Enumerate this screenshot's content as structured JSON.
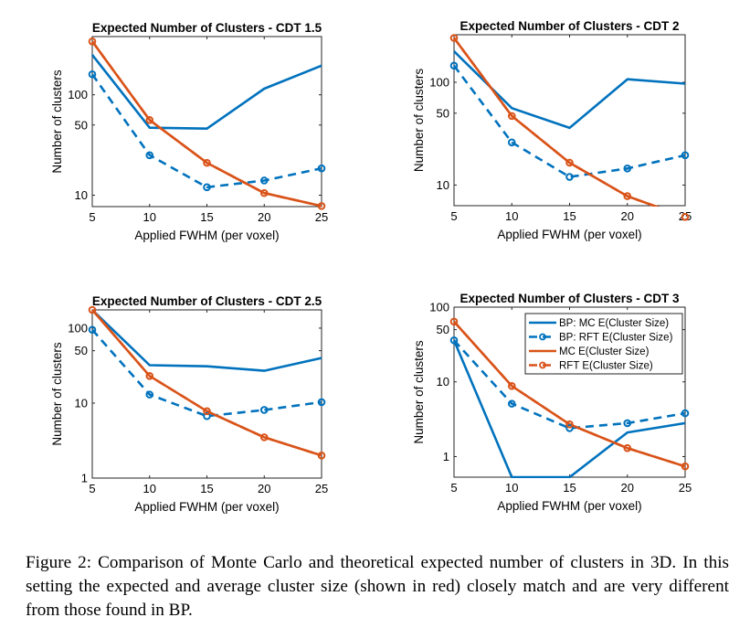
{
  "caption": "Figure 2: Comparison of Monte Carlo and theoretical expected number of clusters in 3D. In this setting the expected and average cluster size (shown in red) closely match and are very different from those found in BP.",
  "colors": {
    "blue": "#0072BD",
    "orange": "#D95319"
  },
  "chart_data": [
    {
      "type": "line",
      "title": "Expected Number of Clusters - CDT 1.5",
      "xlabel": "Applied FWHM (per voxel)",
      "ylabel": "Number of clusters",
      "yscale": "log",
      "x": [
        5,
        10,
        15,
        20,
        25
      ],
      "xlim": [
        5,
        25
      ],
      "ylim": [
        7.7,
        380
      ],
      "xticks": [
        5,
        10,
        15,
        20,
        25
      ],
      "yticks": [
        10,
        50,
        100
      ],
      "legend": null,
      "series": [
        {
          "key": "bp_mc",
          "values": [
            250,
            47,
            46,
            115,
            195
          ],
          "color": "#0072BD",
          "style": "solid",
          "markers": false
        },
        {
          "key": "bp_rft",
          "values": [
            160,
            25,
            12,
            14,
            18.5
          ],
          "color": "#0072BD",
          "style": "dashed",
          "markers": true
        },
        {
          "key": "mc",
          "values": [
            340,
            56,
            21,
            10.5,
            7.8
          ],
          "color": "#D95319",
          "style": "solid",
          "markers": false
        },
        {
          "key": "rft",
          "values": [
            340,
            56,
            21,
            10.5,
            7.8
          ],
          "color": "#D95319",
          "style": "dashed",
          "markers": true
        }
      ]
    },
    {
      "type": "line",
      "title": "Expected Number of Clusters - CDT 2",
      "xlabel": "Applied FWHM (per voxel)",
      "ylabel": "Number of clusters",
      "yscale": "log",
      "x": [
        5,
        10,
        15,
        20,
        25
      ],
      "xlim": [
        5,
        25
      ],
      "ylim": [
        6.3,
        290
      ],
      "xticks": [
        5,
        10,
        15,
        20,
        25
      ],
      "yticks": [
        10,
        50,
        100
      ],
      "legend": null,
      "series": [
        {
          "key": "bp_mc",
          "values": [
            200,
            56,
            36,
            107,
            97
          ],
          "color": "#0072BD",
          "style": "solid",
          "markers": false
        },
        {
          "key": "bp_rft",
          "values": [
            145,
            26,
            12,
            14.5,
            19.5
          ],
          "color": "#0072BD",
          "style": "dashed",
          "markers": true
        },
        {
          "key": "mc",
          "values": [
            270,
            47,
            16.5,
            7.8,
            4.9
          ],
          "color": "#D95319",
          "style": "solid",
          "markers": false
        },
        {
          "key": "rft",
          "values": [
            270,
            47,
            16.5,
            7.8,
            4.9
          ],
          "color": "#D95319",
          "style": "dashed",
          "markers": true
        }
      ]
    },
    {
      "type": "line",
      "title": "Expected Number of Clusters - CDT 2.5",
      "xlabel": "Applied FWHM (per voxel)",
      "ylabel": "Number of clusters",
      "yscale": "log",
      "x": [
        5,
        10,
        15,
        20,
        25
      ],
      "xlim": [
        5,
        25
      ],
      "ylim": [
        1,
        175
      ],
      "xticks": [
        5,
        10,
        15,
        20,
        25
      ],
      "yticks": [
        1,
        10,
        50,
        100
      ],
      "legend": null,
      "series": [
        {
          "key": "bp_mc",
          "values": [
            175,
            32,
            31,
            27,
            40
          ],
          "color": "#0072BD",
          "style": "solid",
          "markers": false
        },
        {
          "key": "bp_rft",
          "values": [
            95,
            13,
            6.7,
            8.1,
            10.3
          ],
          "color": "#0072BD",
          "style": "dashed",
          "markers": true
        },
        {
          "key": "mc",
          "values": [
            175,
            23,
            7.8,
            3.5,
            2.0
          ],
          "color": "#D95319",
          "style": "solid",
          "markers": false
        },
        {
          "key": "rft",
          "values": [
            175,
            23,
            7.8,
            3.5,
            2.0
          ],
          "color": "#D95319",
          "style": "dashed",
          "markers": true
        }
      ]
    },
    {
      "type": "line",
      "title": "Expected Number of Clusters - CDT 3",
      "xlabel": "Applied FWHM (per voxel)",
      "ylabel": "Number of clusters",
      "yscale": "log",
      "x": [
        5,
        10,
        15,
        20,
        25
      ],
      "xlim": [
        5,
        25
      ],
      "ylim": [
        0.53,
        100
      ],
      "xticks": [
        5,
        10,
        15,
        20,
        25
      ],
      "yticks": [
        1,
        10,
        50,
        100
      ],
      "legend": {
        "position": "top-right",
        "entries": [
          {
            "series": "bp_mc",
            "label": "BP: MC E(Cluster Size)"
          },
          {
            "series": "bp_rft",
            "label": "BP: RFT E(Cluster Size)"
          },
          {
            "series": "mc",
            "label": "MC E(Cluster Size)"
          },
          {
            "series": "rft",
            "label": "RFT E(Cluster Size)"
          }
        ]
      },
      "series": [
        {
          "key": "bp_mc",
          "values": [
            36,
            0.53,
            0.53,
            2.1,
            2.8
          ],
          "color": "#0072BD",
          "style": "solid",
          "markers": false
        },
        {
          "key": "bp_rft",
          "values": [
            36,
            5.1,
            2.4,
            2.8,
            3.8
          ],
          "color": "#0072BD",
          "style": "dashed",
          "markers": true
        },
        {
          "key": "mc",
          "values": [
            64,
            8.8,
            2.7,
            1.3,
            0.74
          ],
          "color": "#D95319",
          "style": "solid",
          "markers": false
        },
        {
          "key": "rft",
          "values": [
            64,
            8.8,
            2.7,
            1.3,
            0.74
          ],
          "color": "#D95319",
          "style": "dashed",
          "markers": true
        }
      ]
    }
  ]
}
